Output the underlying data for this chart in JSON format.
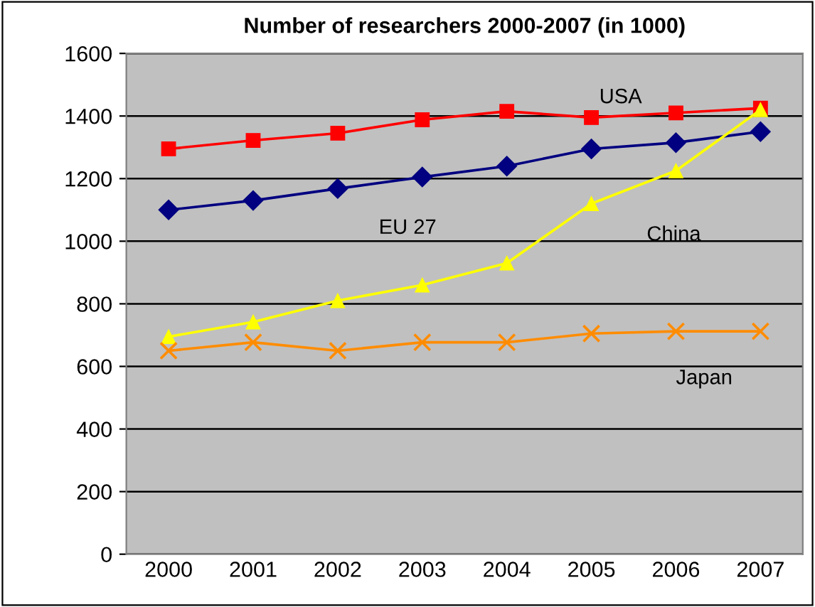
{
  "chart_data": {
    "type": "line",
    "title": "Number of researchers 2000-2007 (in 1000)",
    "categories": [
      "2000",
      "2001",
      "2002",
      "2003",
      "2004",
      "2005",
      "2006",
      "2007"
    ],
    "series": [
      {
        "name": "USA",
        "color": "#ff0000",
        "marker": "square",
        "values": [
          1295,
          1322,
          1345,
          1388,
          1415,
          1395,
          1410,
          1425
        ]
      },
      {
        "name": "EU 27",
        "color": "#000080",
        "marker": "diamond",
        "values": [
          1100,
          1130,
          1168,
          1205,
          1240,
          1295,
          1315,
          1350
        ]
      },
      {
        "name": "China",
        "color": "#ffff00",
        "marker": "triangle",
        "values": [
          695,
          742,
          810,
          860,
          930,
          1120,
          1225,
          1420
        ]
      },
      {
        "name": "Japan",
        "color": "#ff8c00",
        "marker": "cross",
        "values": [
          650,
          677,
          650,
          677,
          677,
          705,
          712,
          712
        ]
      }
    ],
    "ylim": [
      0,
      1600
    ],
    "yticks": [
      0,
      200,
      400,
      600,
      800,
      1000,
      1200,
      1400,
      1600
    ],
    "grid": "y",
    "legend": false
  }
}
